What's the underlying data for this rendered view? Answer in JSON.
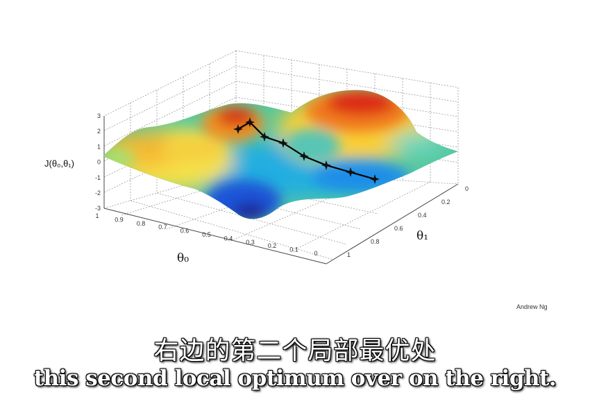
{
  "chart_data": {
    "type": "surface",
    "zlabel": "J(θ₀,θ₁)",
    "xlabel": "θ₀",
    "ylabel": "θ₁",
    "z_ticks": [
      "3",
      "2",
      "1",
      "0",
      "-1",
      "-2",
      "-3"
    ],
    "theta0_ticks": [
      "1",
      "0.9",
      "0.8",
      "0.7",
      "0.6",
      "0.5",
      "0.4",
      "0.3",
      "0.2",
      "0.1",
      "0"
    ],
    "theta1_ticks": [
      "0",
      "0.2",
      "0.4",
      "0.6",
      "0.8",
      "1"
    ],
    "zlim": [
      -3,
      3
    ],
    "grid": true,
    "descent_path_markers": 8
  },
  "credit": "Andrew Ng",
  "subtitle_cn": "右边的第二个局部最优处",
  "subtitle_en": "this second local optimum over on the right."
}
